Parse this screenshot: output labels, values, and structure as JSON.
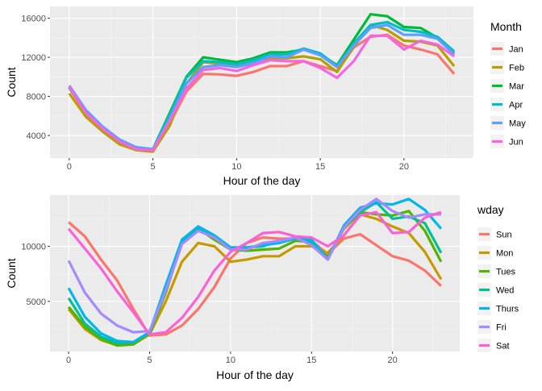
{
  "chart_data": [
    {
      "type": "line",
      "xlabel": "Hour of the day",
      "ylabel": "Count",
      "xlim": [
        -1.15,
        24.15
      ],
      "ylim": [
        1700,
        17200
      ],
      "x_ticks": [
        0,
        5,
        10,
        15,
        20
      ],
      "y_ticks": [
        4000,
        8000,
        12000,
        16000
      ],
      "x_tick_labels": [
        "0",
        "5",
        "10",
        "15",
        "20"
      ],
      "y_tick_labels": [
        "4000",
        "8000",
        "12000",
        "16000"
      ],
      "grid": true,
      "legend": {
        "title": "Month",
        "position": "right"
      },
      "x": [
        0,
        1,
        2,
        3,
        4,
        5,
        6,
        7,
        8,
        9,
        10,
        11,
        12,
        13,
        14,
        15,
        16,
        17,
        18,
        19,
        20,
        21,
        22,
        23
      ],
      "series": [
        {
          "name": "Jan",
          "color": "#F8766D",
          "values": [
            8900,
            6200,
            4500,
            3300,
            2600,
            2400,
            5200,
            8500,
            10300,
            10250,
            10100,
            10500,
            11100,
            11100,
            11600,
            11100,
            10600,
            13000,
            14100,
            14300,
            13200,
            12800,
            12300,
            10300
          ]
        },
        {
          "name": "Feb",
          "color": "#B79F00",
          "values": [
            8300,
            5900,
            4400,
            3100,
            2500,
            2350,
            5000,
            9300,
            11500,
            11350,
            11200,
            11600,
            11900,
            11900,
            12100,
            11800,
            10500,
            13100,
            15300,
            14800,
            13700,
            13600,
            13200,
            11100
          ]
        },
        {
          "name": "Mar",
          "color": "#00BA38",
          "values": [
            8900,
            6400,
            4700,
            3500,
            2800,
            2600,
            6300,
            10000,
            12000,
            11750,
            11500,
            11900,
            12500,
            12500,
            12800,
            12300,
            11200,
            13800,
            16400,
            16200,
            15100,
            15000,
            14000,
            12400
          ]
        },
        {
          "name": "Apr",
          "color": "#00BFC4",
          "values": [
            9000,
            6400,
            4800,
            3500,
            2800,
            2600,
            6100,
            9900,
            11600,
            11500,
            11300,
            11700,
            12300,
            12300,
            12900,
            12400,
            11100,
            13400,
            15300,
            15600,
            14800,
            14600,
            14100,
            12600
          ]
        },
        {
          "name": "May",
          "color": "#619CFF",
          "values": [
            9100,
            6600,
            4900,
            3600,
            2800,
            2600,
            5700,
            9300,
            11000,
            11200,
            11000,
            11400,
            12100,
            12000,
            12800,
            12200,
            11000,
            13200,
            15000,
            15300,
            14300,
            14300,
            13900,
            12300
          ]
        },
        {
          "name": "Jun",
          "color": "#F564E3",
          "values": [
            9000,
            6300,
            4700,
            3400,
            2600,
            2500,
            5500,
            8800,
            10700,
            10900,
            10600,
            11200,
            11700,
            11600,
            11600,
            10900,
            9900,
            11600,
            14200,
            14200,
            12800,
            13700,
            13300,
            12100
          ]
        }
      ]
    },
    {
      "type": "line",
      "xlabel": "Hour of the day",
      "ylabel": "Count",
      "xlim": [
        -1.15,
        24.15
      ],
      "ylim": [
        450,
        14650
      ],
      "x_ticks": [
        0,
        5,
        10,
        15,
        20
      ],
      "y_ticks": [
        5000,
        10000
      ],
      "x_tick_labels": [
        "0",
        "5",
        "10",
        "15",
        "20"
      ],
      "y_tick_labels": [
        "5000",
        "10000"
      ],
      "grid": true,
      "legend": {
        "title": "wday",
        "position": "right"
      },
      "x": [
        0,
        1,
        2,
        3,
        4,
        5,
        6,
        7,
        8,
        9,
        10,
        11,
        12,
        13,
        14,
        15,
        16,
        17,
        18,
        19,
        20,
        21,
        22,
        23
      ],
      "series": [
        {
          "name": "Sun",
          "color": "#F8766D",
          "values": [
            12200,
            10900,
            8800,
            6900,
            4300,
            1900,
            2000,
            2800,
            4300,
            6300,
            8900,
            10300,
            10800,
            10700,
            10700,
            10500,
            9300,
            10700,
            11100,
            10100,
            9100,
            8700,
            7800,
            6400
          ]
        },
        {
          "name": "Mon",
          "color": "#C49A00",
          "values": [
            4300,
            2500,
            1500,
            1000,
            1100,
            2000,
            5000,
            8600,
            10300,
            10000,
            8600,
            8800,
            9100,
            9100,
            10000,
            10000,
            9400,
            11000,
            12900,
            12500,
            11800,
            11200,
            9500,
            7000
          ]
        },
        {
          "name": "Tues",
          "color": "#53B400",
          "values": [
            4500,
            2700,
            1600,
            1000,
            1100,
            2100,
            5800,
            10400,
            11600,
            10600,
            9700,
            9600,
            9700,
            9800,
            10500,
            10400,
            9000,
            11600,
            13100,
            12900,
            12800,
            13200,
            11400,
            8600
          ]
        },
        {
          "name": "Wed",
          "color": "#00C094",
          "values": [
            5300,
            3000,
            1800,
            1200,
            1300,
            2200,
            6000,
            10500,
            11600,
            10800,
            9700,
            9900,
            10000,
            10500,
            10700,
            10400,
            8800,
            11800,
            13100,
            14000,
            12500,
            12700,
            12100,
            9400
          ]
        },
        {
          "name": "Thurs",
          "color": "#00B6EB",
          "values": [
            6200,
            3600,
            2100,
            1400,
            1300,
            2200,
            6500,
            10600,
            11800,
            11000,
            9900,
            9900,
            10100,
            10300,
            10700,
            10600,
            8800,
            11900,
            13500,
            13900,
            13800,
            14300,
            13300,
            11600
          ]
        },
        {
          "name": "Fri",
          "color": "#A58AFF",
          "values": [
            8700,
            5800,
            3900,
            2800,
            2200,
            2300,
            6000,
            10200,
            11400,
            10800,
            9700,
            9700,
            10300,
            10500,
            10800,
            10100,
            8800,
            11700,
            13300,
            14300,
            13200,
            12600,
            12900,
            12900
          ]
        },
        {
          "name": "Sat",
          "color": "#FB61D7",
          "values": [
            11600,
            9800,
            8000,
            5900,
            4000,
            2000,
            2200,
            3500,
            5400,
            7800,
            9500,
            10300,
            11200,
            11300,
            10900,
            10800,
            10000,
            11000,
            12800,
            13100,
            11200,
            11300,
            12600,
            13100
          ]
        }
      ]
    }
  ]
}
